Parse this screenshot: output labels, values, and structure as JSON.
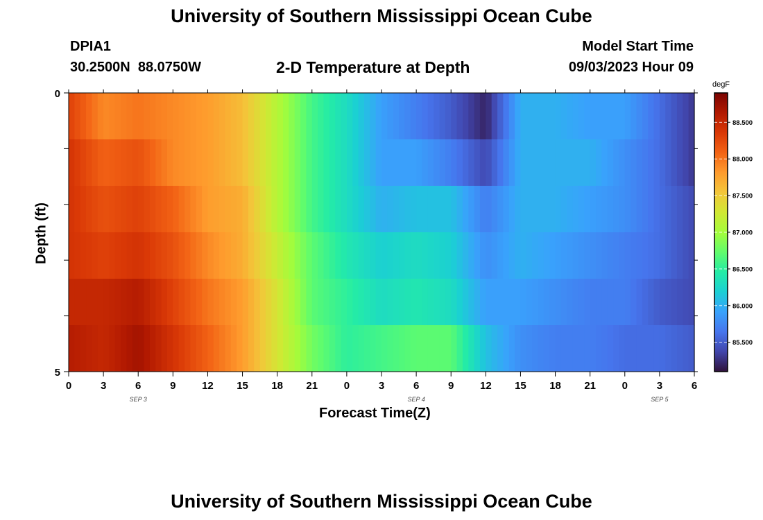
{
  "page": {
    "title": "University of Southern Mississippi Ocean Cube",
    "bottom_title": "University of Southern Mississippi Ocean Cube",
    "station_id": "DPIA1",
    "station_coords": "30.2500N  88.0750W",
    "plot_title": "2-D Temperature at Depth",
    "model_start_label": "Model Start Time",
    "model_start_value": "09/03/2023 Hour 09"
  },
  "colors": {
    "colormap": [
      "#30123b",
      "#4145ab",
      "#4675ed",
      "#39a2fc",
      "#1bcfd4",
      "#24eca6",
      "#61fc6c",
      "#a4fc3b",
      "#d1e834",
      "#f3c63a",
      "#fe9b2d",
      "#f36315",
      "#d93806",
      "#b11901",
      "#7a0402"
    ]
  },
  "chart_data": {
    "type": "heatmap",
    "xlabel": "Forecast Time(Z)",
    "ylabel": "Depth (ft)",
    "x_tick_labels": [
      "0",
      "3",
      "6",
      "9",
      "12",
      "15",
      "18",
      "21",
      "0",
      "3",
      "6",
      "9",
      "12",
      "15",
      "18",
      "21",
      "0",
      "3",
      "6"
    ],
    "date_labels": [
      {
        "label": "SEP 3",
        "at_hour": 6
      },
      {
        "label": "SEP 4",
        "at_hour": 30
      },
      {
        "label": "SEP 5",
        "at_hour": 51
      }
    ],
    "x_range_hours": [
      0,
      54
    ],
    "y_tick_labels": [
      "0",
      "5"
    ],
    "y_range": [
      0,
      5
    ],
    "depths": [
      0,
      1,
      2,
      3,
      4,
      5
    ],
    "colorbar": {
      "unit": "degF",
      "min": 85.1,
      "max": 88.9,
      "tick_labels": [
        "88.500",
        "88.000",
        "87.500",
        "87.000",
        "86.500",
        "86.000",
        "85.500"
      ],
      "tick_values": [
        88.5,
        88.0,
        87.5,
        87.0,
        86.5,
        86.0,
        85.5
      ]
    },
    "time_hours": [
      0,
      3,
      6,
      9,
      12,
      15,
      18,
      21,
      24,
      27,
      30,
      33,
      36,
      39,
      42,
      45,
      48,
      51,
      54
    ],
    "temperature_degF": [
      [
        88.3,
        87.9,
        88.0,
        87.9,
        87.8,
        87.6,
        87.1,
        86.6,
        86.3,
        85.9,
        85.7,
        85.5,
        85.2,
        86.0,
        86.0,
        85.9,
        85.9,
        85.6,
        85.3
      ],
      [
        88.4,
        88.1,
        88.2,
        87.9,
        87.8,
        87.6,
        87.1,
        86.6,
        86.3,
        85.9,
        85.9,
        85.7,
        85.4,
        86.0,
        86.0,
        86.0,
        85.8,
        85.6,
        85.3
      ],
      [
        88.4,
        88.2,
        88.3,
        88.1,
        87.8,
        87.7,
        87.1,
        86.6,
        86.3,
        86.0,
        86.1,
        86.1,
        85.7,
        86.0,
        86.0,
        85.9,
        85.8,
        85.6,
        85.4
      ],
      [
        88.4,
        88.3,
        88.4,
        88.2,
        87.9,
        87.7,
        87.2,
        86.7,
        86.4,
        86.2,
        86.3,
        86.2,
        85.8,
        86.0,
        85.9,
        85.8,
        85.7,
        85.6,
        85.4
      ],
      [
        88.5,
        88.5,
        88.6,
        88.3,
        88.0,
        87.8,
        87.3,
        86.7,
        86.5,
        86.3,
        86.4,
        86.3,
        85.9,
        85.9,
        85.8,
        85.7,
        85.7,
        85.5,
        85.4
      ],
      [
        88.6,
        88.5,
        88.7,
        88.4,
        88.1,
        87.8,
        87.3,
        86.8,
        86.5,
        86.6,
        86.7,
        86.7,
        86.1,
        85.8,
        85.7,
        85.7,
        85.6,
        85.6,
        85.5
      ]
    ]
  }
}
